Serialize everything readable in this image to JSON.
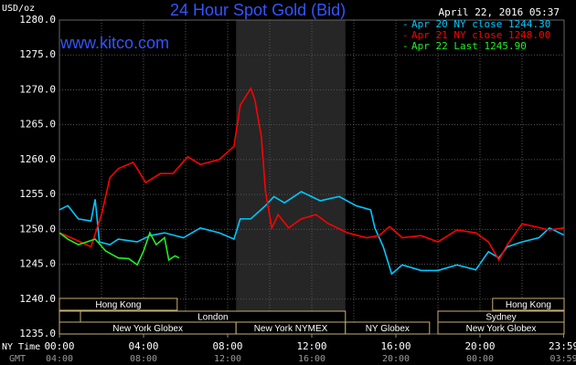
{
  "chart_data": {
    "type": "line",
    "title": "24 Hour Spot Gold (Bid)",
    "source": "www.kitco.com",
    "timestamp": "April 22, 2016 05:37",
    "y_label": "USD/oz",
    "x_row_label": "NY Time",
    "x2_row_label": "GMT",
    "x2_labels": [
      "04:00",
      "08:00",
      "12:00",
      "16:00",
      "20:00",
      "00:00",
      "03:59"
    ],
    "xlim": [
      0,
      24
    ],
    "xticks": [
      {
        "value": 0,
        "label": "00:00"
      },
      {
        "value": 4,
        "label": "04:00"
      },
      {
        "value": 8,
        "label": "08:00"
      },
      {
        "value": 12,
        "label": "12:00"
      },
      {
        "value": 16,
        "label": "16:00"
      },
      {
        "value": 20,
        "label": "20:00"
      },
      {
        "value": 23.98,
        "label": "23:59"
      }
    ],
    "xgrid": [
      0,
      2,
      4,
      6,
      8,
      10,
      12,
      14,
      16,
      18,
      20,
      22,
      24
    ],
    "ylim": [
      1235,
      1280
    ],
    "yticks": [
      {
        "value": 1235,
        "label": "1235.0"
      },
      {
        "value": 1240,
        "label": "1240.0"
      },
      {
        "value": 1245,
        "label": "1245.0"
      },
      {
        "value": 1250,
        "label": "1250.0"
      },
      {
        "value": 1255,
        "label": "1255.0"
      },
      {
        "value": 1260,
        "label": "1260.0"
      },
      {
        "value": 1265,
        "label": "1265.0"
      },
      {
        "value": 1270,
        "label": "1270.0"
      },
      {
        "value": 1275,
        "label": "1275.0"
      },
      {
        "value": 1280,
        "label": "1280.0"
      }
    ],
    "grid": true,
    "highlight": [
      8.4,
      13.6
    ],
    "session_rows": [
      [
        {
          "name": "Hong Kong",
          "start": 0,
          "end": 5.6
        },
        {
          "name": "Hong Kong",
          "start": 20.6,
          "end": 24
        }
      ],
      [
        {
          "name": null,
          "start": 0,
          "end": 1
        },
        {
          "name": "London",
          "start": 1,
          "end": 13.6
        },
        {
          "name": "Sydney",
          "start": 18,
          "end": 24
        }
      ],
      [
        {
          "name": "New York Globex",
          "start": 0,
          "end": 8.4
        },
        {
          "name": "New York NYMEX",
          "start": 8.4,
          "end": 13.6
        },
        {
          "name": "NY Globex",
          "start": 13.6,
          "end": 17.6
        },
        {
          "name": "New York Globex",
          "start": 18,
          "end": 24
        }
      ]
    ],
    "series": [
      {
        "name": "Apr 20 NY close 1244.30",
        "color": "#00c8ff",
        "x": [
          0,
          0.4,
          0.9,
          1.5,
          1.7,
          1.9,
          2.4,
          2.8,
          3.7,
          4.3,
          5.0,
          5.9,
          6.7,
          7.6,
          8.3,
          8.6,
          9.1,
          9.8,
          10.2,
          10.7,
          11.5,
          12.4,
          13.3,
          14.1,
          14.8,
          15.0,
          15.4,
          15.8,
          16.3,
          17.2,
          18.0,
          18.9,
          19.8,
          20.4,
          20.9,
          21.3,
          22.0,
          22.8,
          23.3,
          23.98
        ],
        "values": [
          1252.8,
          1253.4,
          1251.5,
          1251.2,
          1254.3,
          1248.2,
          1247.8,
          1248.6,
          1248.2,
          1249.1,
          1249.5,
          1248.8,
          1250.2,
          1249.5,
          1248.6,
          1251.5,
          1251.5,
          1253.4,
          1254.7,
          1253.8,
          1255.4,
          1254.1,
          1254.7,
          1253.4,
          1252.8,
          1250.2,
          1247.5,
          1243.6,
          1244.9,
          1244.1,
          1244.1,
          1244.9,
          1244.2,
          1246.8,
          1245.9,
          1247.5,
          1248.2,
          1248.8,
          1250.2,
          1249.2
        ]
      },
      {
        "name": "Apr 21 NY close 1248.00",
        "color": "#ff0000",
        "x": [
          0,
          0.7,
          1.5,
          2.0,
          2.4,
          2.8,
          3.5,
          3.7,
          4.1,
          4.8,
          5.4,
          6.1,
          6.7,
          7.6,
          8.3,
          8.6,
          9.1,
          9.3,
          9.6,
          9.8,
          10.1,
          10.4,
          10.9,
          11.5,
          12.2,
          12.8,
          13.7,
          14.6,
          15.2,
          15.7,
          16.3,
          17.2,
          18.0,
          18.9,
          19.8,
          20.4,
          20.9,
          21.3,
          22.0,
          22.6,
          23.3,
          23.98
        ],
        "values": [
          1249.5,
          1248.6,
          1247.5,
          1252.1,
          1257.4,
          1258.7,
          1259.6,
          1258.7,
          1256.7,
          1258.0,
          1258.0,
          1260.4,
          1259.3,
          1260.0,
          1261.9,
          1267.8,
          1270.2,
          1268.5,
          1263.3,
          1255.4,
          1250.2,
          1252.1,
          1250.2,
          1251.5,
          1252.1,
          1250.8,
          1249.5,
          1248.8,
          1249.1,
          1250.4,
          1248.8,
          1249.1,
          1248.2,
          1249.9,
          1249.5,
          1248.2,
          1245.6,
          1247.8,
          1250.8,
          1250.4,
          1249.9,
          1250.2
        ]
      },
      {
        "name": "Apr 22 Last 1245.90",
        "color": "#22ee22",
        "x": [
          0,
          0.4,
          0.9,
          1.3,
          1.7,
          2.2,
          2.8,
          3.3,
          3.7,
          4.0,
          4.3,
          4.6,
          5.0,
          5.2,
          5.5,
          5.7
        ],
        "values": [
          1249.5,
          1248.6,
          1247.8,
          1248.2,
          1248.6,
          1246.9,
          1245.9,
          1245.8,
          1244.9,
          1246.9,
          1249.5,
          1247.8,
          1248.8,
          1245.6,
          1246.2,
          1245.9
        ]
      }
    ]
  }
}
